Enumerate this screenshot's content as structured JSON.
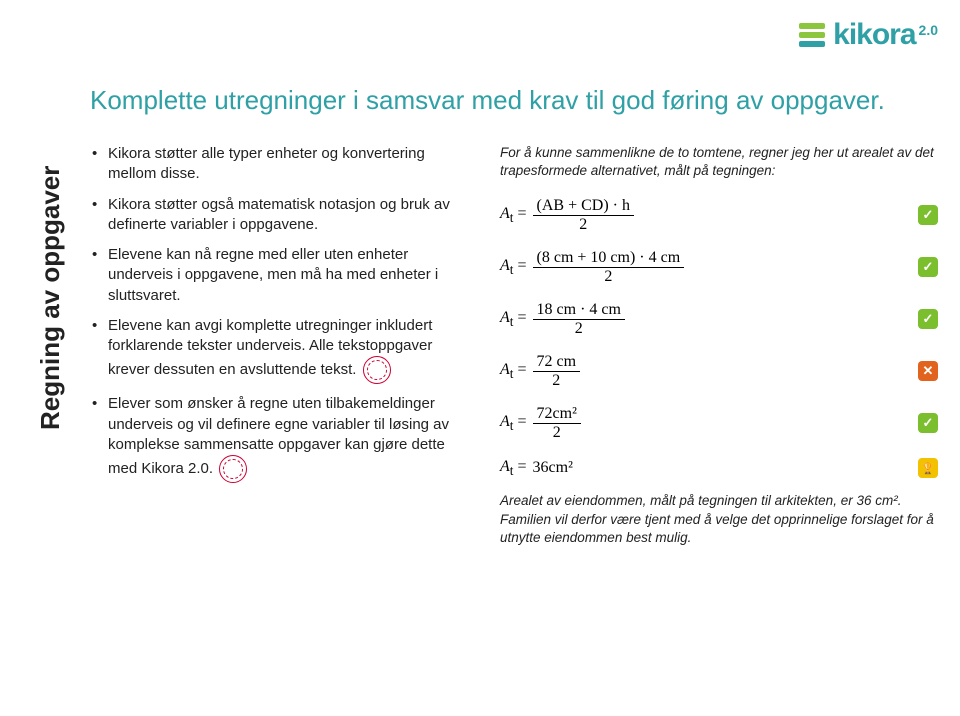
{
  "logo": {
    "text": "kikora",
    "version": "2.0",
    "bar_colors": [
      "#8cc63f",
      "#8cc63f",
      "#2fa0a5"
    ]
  },
  "sidebar_label": "Regning av oppgaver",
  "title": "Komplette utregninger i samsvar med krav til god føring av oppgaver.",
  "bullets": [
    "Kikora støtter alle typer enheter og konvertering mellom disse.",
    "Kikora støtter også matematisk notasjon og bruk av definerte variabler i oppgavene.",
    "Elevene kan nå regne med eller uten enheter underveis i oppgavene, men må ha med enheter i sluttsvaret.",
    "Elevene kan avgi komplette utregninger inkludert forklarende tekster underveis. Alle tekstoppgaver krever dessuten en avsluttende tekst.",
    "Elever som ønsker å regne uten tilbakemeldinger underveis og vil definere egne variabler til løsing av komplekse sammensatte oppgaver kan gjøre dette med Kikora 2.0."
  ],
  "right": {
    "intro": "For å kunne sammenlikne de to tomtene, regner jeg her ut arealet av det trapesformede alternativet, målt på tegningen:",
    "equations": [
      {
        "lhs": "A",
        "sub": "t",
        "num": "(AB + CD) · h",
        "den": "2",
        "status": "ok",
        "status_color": "#7bbf2e"
      },
      {
        "lhs": "A",
        "sub": "t",
        "num": "(8 cm + 10 cm) · 4 cm",
        "den": "2",
        "status": "ok",
        "status_color": "#7bbf2e"
      },
      {
        "lhs": "A",
        "sub": "t",
        "num": "18 cm · 4 cm",
        "den": "2",
        "status": "ok",
        "status_color": "#7bbf2e"
      },
      {
        "lhs": "A",
        "sub": "t",
        "num": "72 cm",
        "den": "2",
        "status": "err",
        "status_color": "#e2631e"
      },
      {
        "lhs": "A",
        "sub": "t",
        "num": "72cm²",
        "den": "2",
        "status": "ok",
        "status_color": "#7bbf2e"
      },
      {
        "lhs": "A",
        "sub": "t",
        "plain": "36cm²",
        "status": "done",
        "status_color": "#f2c200"
      }
    ],
    "conclusion_a": "Arealet av eiendommen, målt på tegningen til arkitekten, er 36 cm",
    "conclusion_sup": "²",
    "conclusion_b": ". Familien vil derfor være tjent med å velge det opprinnelige forslaget for å utnytte eiendommen best mulig."
  },
  "colors": {
    "accent": "#2fa0a5",
    "text": "#222222"
  }
}
